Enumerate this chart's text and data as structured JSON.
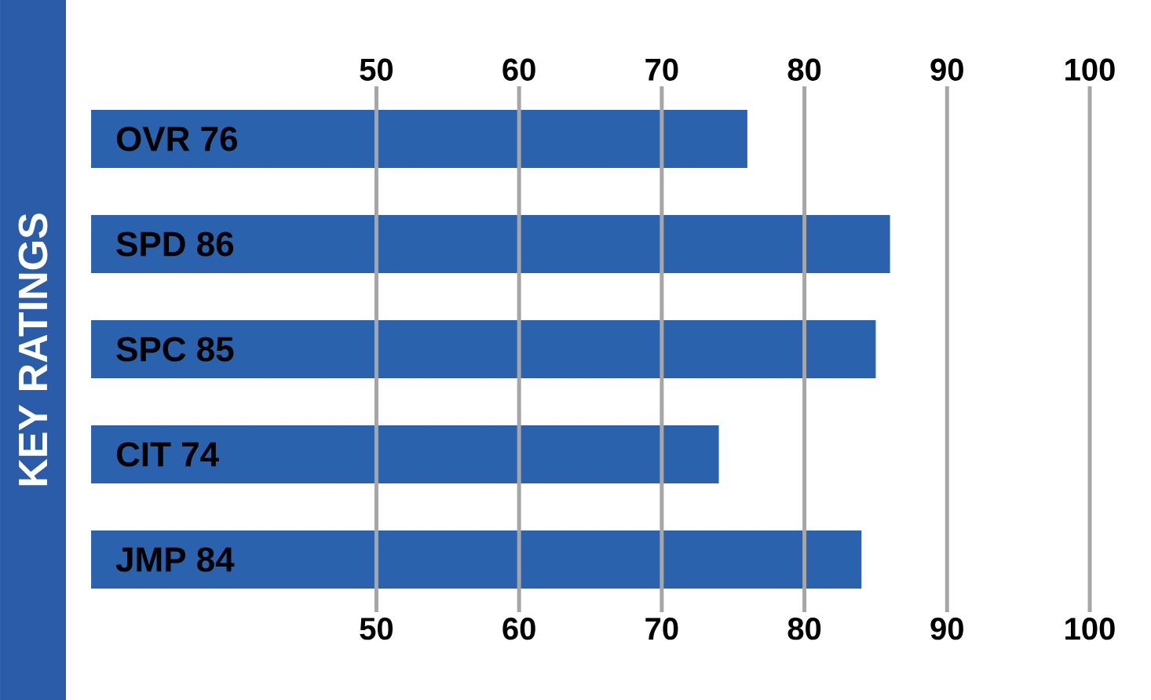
{
  "chart_data": {
    "type": "bar",
    "orientation": "horizontal",
    "title": "KEY RATINGS",
    "categories": [
      "OVR 76",
      "SPD 86",
      "SPC 85",
      "CIT 74",
      "JMP 84"
    ],
    "values": [
      76,
      86,
      85,
      74,
      84
    ],
    "color": "#2a62ad",
    "xlim": [
      30,
      100
    ],
    "xticks": [
      50,
      60,
      70,
      80,
      90,
      100
    ],
    "x2lim": [
      30,
      100
    ],
    "x2ticks": [
      50,
      60,
      70,
      80,
      90,
      100
    ],
    "grid": "x"
  }
}
